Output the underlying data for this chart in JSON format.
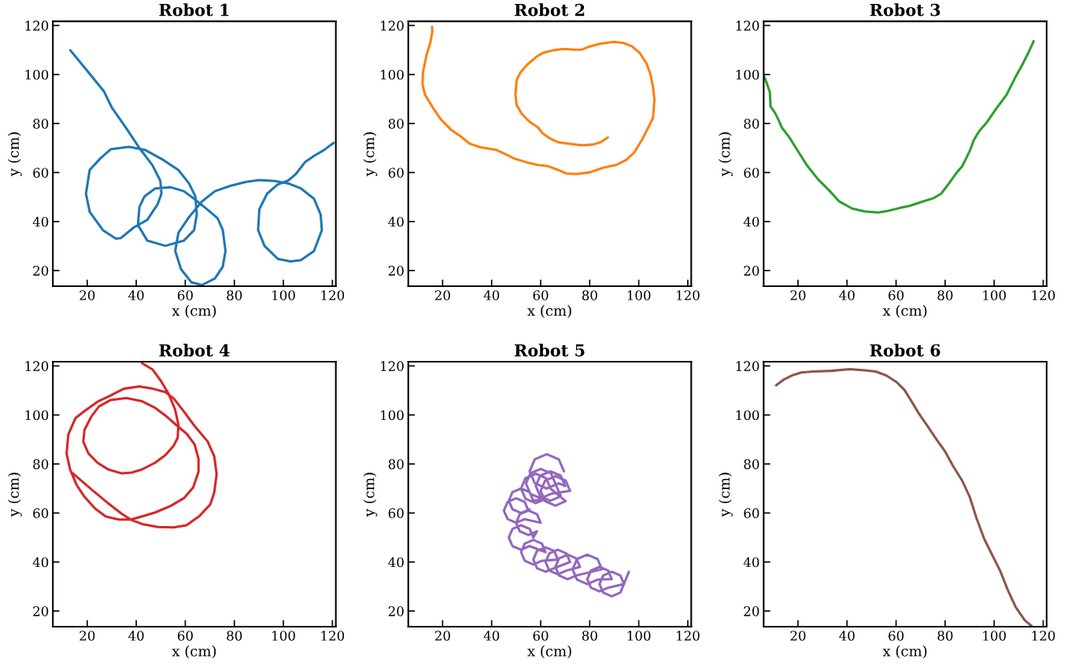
{
  "chart_data": [
    {
      "type": "line",
      "title": "Robot 1",
      "xlabel": "x (cm)",
      "ylabel": "y (cm)",
      "xlim": [
        6,
        121.4
      ],
      "ylim": [
        13.6,
        121.7
      ],
      "xticks": [
        20,
        40,
        60,
        80,
        100,
        120
      ],
      "yticks": [
        20,
        40,
        60,
        80,
        100,
        120
      ],
      "grid": false,
      "series": [
        {
          "color": "#1f77b4",
          "x": [
            13.1,
            20,
            26.9,
            30,
            36,
            41.3,
            46.6,
            49.8,
            50.3,
            48.7,
            44.5,
            39,
            33.8,
            31.7,
            26.4,
            21,
            19.5,
            21,
            25.3,
            29.6,
            37,
            43.4,
            50.9,
            57.2,
            61.5,
            64.1,
            64.7,
            63.6,
            59.4,
            51.9,
            44.5,
            40.7,
            41.3,
            43.4,
            47.7,
            54,
            59.4,
            63.6,
            68.9,
            73.2,
            75.3,
            76.4,
            75.3,
            72.1,
            66.8,
            62.5,
            58.3,
            55.9,
            57.2,
            61.5,
            66.8,
            72.1,
            78.5,
            84.9,
            90.2,
            96.6,
            101.9,
            107.2,
            112.5,
            115.2,
            115.7,
            112.5,
            107.2,
            103,
            97.7,
            92.3,
            89.7,
            90.2,
            93.4,
            97.7,
            101.9,
            105.1,
            108.8,
            112.5,
            116.3,
            120.5
          ],
          "values": [
            109.9,
            101.5,
            93,
            86.6,
            78,
            70,
            63,
            56.7,
            51.4,
            47,
            40.7,
            37.6,
            33.3,
            33,
            36.5,
            44,
            51.4,
            61,
            65.7,
            69.5,
            70.5,
            69.3,
            65.2,
            61,
            55.6,
            50.3,
            42.9,
            36.5,
            32.2,
            30.1,
            32.2,
            38.6,
            46,
            50.3,
            53.5,
            54,
            52.4,
            49.3,
            45,
            41.3,
            36.5,
            28,
            21.6,
            16.8,
            14.1,
            15.2,
            20.5,
            28,
            35.4,
            41.8,
            48.2,
            52.4,
            54.6,
            56.2,
            56.9,
            56.5,
            55.6,
            53.5,
            49.3,
            42.9,
            36.5,
            28,
            24.3,
            23.7,
            24.8,
            30.1,
            36.5,
            45,
            51.4,
            55.1,
            56.7,
            59.4,
            64.2,
            66.8,
            69,
            72.1
          ]
        }
      ]
    },
    {
      "type": "line",
      "title": "Robot 2",
      "xlabel": "x (cm)",
      "ylabel": "y (cm)",
      "xlim": [
        6,
        121.4
      ],
      "ylim": [
        13.6,
        121.7
      ],
      "xticks": [
        20,
        40,
        60,
        80,
        100,
        120
      ],
      "yticks": [
        20,
        40,
        60,
        80,
        100,
        120
      ],
      "grid": false,
      "series": [
        {
          "color": "#ff7f0e",
          "x": [
            15.7,
            15.8,
            15,
            13.4,
            12,
            11.8,
            12.8,
            16,
            19.3,
            23.5,
            27.3,
            31,
            35.3,
            41.7,
            46,
            49.2,
            54.5,
            58.8,
            63,
            67.3,
            70.5,
            74.8,
            80.1,
            85.5,
            90.8,
            95,
            98.3,
            101.5,
            103.7,
            105.8,
            106.4,
            105.8,
            104.7,
            103.1,
            100.4,
            97.2,
            94,
            89.8,
            84.4,
            80.1,
            77,
            73.7,
            69.5,
            65.2,
            60.9,
            58.2,
            54.5,
            51.8,
            50.2,
            49.7,
            50.2,
            52.4,
            55.6,
            58.8,
            60.9,
            64.1,
            67.3,
            72.7,
            77,
            81.2,
            84.4,
            87.4
          ],
          "values": [
            119.5,
            117.3,
            113,
            107.8,
            100.9,
            96,
            91.8,
            86.5,
            81.7,
            77.4,
            74.8,
            71.8,
            70.3,
            69.3,
            67.3,
            65.7,
            64.1,
            63.1,
            62.6,
            61,
            59.6,
            59.4,
            60.1,
            62,
            63.1,
            65.2,
            68.4,
            73.7,
            78,
            82.2,
            89.7,
            95,
            100.3,
            104.6,
            108.8,
            111.5,
            112.8,
            113.3,
            112.6,
            111.5,
            110.2,
            110.1,
            110.4,
            109.9,
            108.8,
            107.2,
            104,
            100.9,
            97.7,
            91.8,
            87.6,
            83.8,
            80.6,
            78.5,
            75.9,
            73.7,
            72.3,
            71.6,
            71.1,
            71.4,
            72.3,
            74.3
          ]
        }
      ]
    },
    {
      "type": "line",
      "title": "Robot 3",
      "xlabel": "x (cm)",
      "ylabel": "y (cm)",
      "xlim": [
        6,
        121.4
      ],
      "ylim": [
        13.6,
        121.7
      ],
      "xticks": [
        20,
        40,
        60,
        80,
        100,
        120
      ],
      "yticks": [
        20,
        40,
        60,
        80,
        100,
        120
      ],
      "grid": false,
      "series": [
        {
          "color": "#2ca02c",
          "x": [
            6.1,
            7.4,
            8.5,
            8.8,
            10.6,
            12.2,
            13.3,
            16.5,
            20.2,
            23.9,
            28.2,
            33,
            36.8,
            42.1,
            47.4,
            52.8,
            57,
            61.3,
            65.6,
            70.9,
            75.2,
            78.4,
            81.6,
            84.3,
            87,
            90.1,
            91.7,
            93.9,
            97.1,
            100.8,
            105.1,
            108.3,
            111.5,
            114.2,
            116.1
          ],
          "values": [
            99.3,
            96.1,
            92.9,
            87,
            84.4,
            81.2,
            78.5,
            74.3,
            68.4,
            62.6,
            57.2,
            52.4,
            48.2,
            45.3,
            44.1,
            43.7,
            44.4,
            45.5,
            46.4,
            48.2,
            49.5,
            51.4,
            55.6,
            59.4,
            62.6,
            68.9,
            73.2,
            76.9,
            80.6,
            86,
            91.8,
            98.2,
            104,
            109.4,
            113.6
          ]
        }
      ]
    },
    {
      "type": "line",
      "title": "Robot 4",
      "xlabel": "x (cm)",
      "ylabel": "y (cm)",
      "xlim": [
        6,
        121.4
      ],
      "ylim": [
        13.6,
        121.7
      ],
      "xticks": [
        20,
        40,
        60,
        80,
        100,
        120
      ],
      "yticks": [
        20,
        40,
        60,
        80,
        100,
        120
      ],
      "grid": false,
      "series": [
        {
          "color": "#d62728",
          "x": [
            42.4,
            46.7,
            49.9,
            53.1,
            55.8,
            57.2,
            56.9,
            55.3,
            52,
            47.7,
            42.4,
            38.1,
            33.9,
            28.5,
            24.2,
            20.5,
            18.4,
            18.9,
            21.6,
            24.8,
            29.6,
            36,
            42.4,
            47.7,
            52,
            56.3,
            60.6,
            63.8,
            65.4,
            65.4,
            63.2,
            59.5,
            54.1,
            47.7,
            42.4,
            38.1,
            32.8,
            27.5,
            23.2,
            18.9,
            15.7,
            13,
            11.6,
            12.3,
            15.2,
            18.9,
            24.2,
            29.6,
            34.9,
            41.3,
            46.7,
            52,
            55.3,
            59.5,
            63.8,
            69.1,
            71.8,
            72.8,
            71.8,
            70.2,
            65.8,
            60.5,
            55.2,
            48.8,
            42.4,
            38.1,
            33.9,
            28.5,
            22.1,
            14.1
          ],
          "values": [
            121.1,
            118.5,
            114.1,
            108.8,
            102.4,
            96,
            90.7,
            87.5,
            83.7,
            80.5,
            77.8,
            76.5,
            76.2,
            77.8,
            80.5,
            84.3,
            89.1,
            93.9,
            99.2,
            103.5,
            106.1,
            106.9,
            105.6,
            102.9,
            99.7,
            95.9,
            92.3,
            88,
            82.1,
            76.8,
            70.4,
            66.1,
            62.9,
            60.2,
            58.6,
            57.4,
            57.3,
            58.6,
            61.8,
            66.6,
            71.4,
            77.8,
            84.2,
            92,
            98.7,
            101.6,
            105.4,
            108,
            110.7,
            111.6,
            110.7,
            109.3,
            106.7,
            101.3,
            95.5,
            89.2,
            83.2,
            75.8,
            68.3,
            63.5,
            58.8,
            55,
            54.1,
            54.3,
            55.5,
            57.1,
            59.8,
            64,
            69.3,
            76.2
          ]
        }
      ]
    },
    {
      "type": "line",
      "title": "Robot 5",
      "xlabel": "x (cm)",
      "ylabel": "y (cm)",
      "xlim": [
        6,
        121.4
      ],
      "ylim": [
        13.6,
        121.7
      ],
      "xticks": [
        20,
        40,
        60,
        80,
        100,
        120
      ],
      "yticks": [
        20,
        40,
        60,
        80,
        100,
        120
      ],
      "grid": false,
      "series": [
        {
          "color": "#9467bd",
          "x": [
            69.5,
            67.4,
            62.5,
            57.6,
            55.5,
            57.6,
            62.5,
            67.4,
            70,
            68.2,
            64,
            59.8,
            58,
            59.8,
            64,
            68.2,
            66,
            64.2,
            60,
            55.8,
            54,
            55.8,
            60,
            64.2,
            72,
            70.2,
            66,
            61.8,
            60,
            61.8,
            66,
            70.2,
            64,
            62.2,
            58,
            53.8,
            52,
            53.8,
            58,
            62.2,
            57,
            55.5,
            52,
            48.5,
            47,
            48.5,
            52,
            55.5,
            55,
            53.5,
            50,
            46.5,
            45,
            46.5,
            50,
            53.5,
            60,
            58.5,
            55,
            51.5,
            50,
            51.5,
            55,
            58.5,
            57,
            55.5,
            52,
            48.5,
            47,
            48.5,
            52,
            55.5,
            62,
            60.5,
            57,
            53.5,
            52,
            53.5,
            57,
            60.5,
            67,
            65.5,
            62,
            58.5,
            57,
            58.5,
            62,
            65.5,
            72,
            70.5,
            67,
            63.5,
            62,
            63.5,
            67,
            70.5,
            76,
            74.5,
            71,
            67.5,
            66,
            67.5,
            71,
            74.5,
            85,
            83.2,
            79,
            74.8,
            73,
            74.8,
            79,
            83.2,
            89,
            87.5,
            84,
            80.5,
            79,
            80.5,
            84,
            87.5,
            94,
            92.5,
            89,
            85.5,
            84,
            85.5,
            89,
            92.5,
            96
          ],
          "values": [
            77,
            81.9,
            84,
            81.9,
            77,
            72.1,
            70,
            72.1,
            71,
            75.2,
            77,
            75.2,
            71,
            66.8,
            65,
            66.8,
            72,
            76.2,
            78,
            76.2,
            72,
            67.8,
            66,
            67.8,
            69,
            73.2,
            75,
            73.2,
            69,
            64.8,
            63,
            64.8,
            70,
            74.2,
            76,
            74.2,
            70,
            65.8,
            64,
            65.8,
            65,
            68.5,
            70,
            68.5,
            65,
            61.5,
            60,
            61.5,
            61,
            64.5,
            66,
            64.5,
            61,
            57.5,
            56,
            57.5,
            56,
            59.5,
            61,
            59.5,
            56,
            52.5,
            51,
            52.5,
            50,
            53.5,
            55,
            53.5,
            50,
            46.5,
            45,
            46.5,
            44,
            47.5,
            49,
            47.5,
            44,
            40.5,
            39,
            40.5,
            41,
            44.5,
            46,
            44.5,
            41,
            37.5,
            36,
            37.5,
            40,
            43.5,
            45,
            43.5,
            40,
            36.5,
            35,
            36.5,
            38,
            41.5,
            43,
            41.5,
            38,
            34.5,
            33,
            34.5,
            37,
            41.2,
            43,
            41.2,
            37,
            32.8,
            31,
            32.8,
            33,
            36.5,
            38,
            36.5,
            33,
            29.5,
            28,
            29.5,
            31,
            34.5,
            36,
            34.5,
            31,
            27.5,
            26,
            27.5,
            36
          ]
        }
      ]
    },
    {
      "type": "line",
      "title": "Robot 6",
      "xlabel": "x (cm)",
      "ylabel": "y (cm)",
      "xlim": [
        6,
        121.4
      ],
      "ylim": [
        13.6,
        121.7
      ],
      "xticks": [
        20,
        40,
        60,
        80,
        100,
        120
      ],
      "yticks": [
        20,
        40,
        60,
        80,
        100,
        120
      ],
      "grid": false,
      "series": [
        {
          "color": "#8c564b",
          "x": [
            11.1,
            14.3,
            17.5,
            21.3,
            26.1,
            33.6,
            41,
            47.4,
            51.7,
            56,
            60.2,
            63.4,
            66.1,
            69.3,
            73,
            76.2,
            80,
            83.2,
            86.9,
            90.1,
            92.8,
            96,
            99.2,
            102.4,
            105.6,
            108.8,
            112.5,
            115.4
          ],
          "values": [
            112.1,
            114.5,
            116.1,
            117.3,
            117.7,
            118,
            118.7,
            118.2,
            117.7,
            116.1,
            113.4,
            110.2,
            105.9,
            100.6,
            95.2,
            90.4,
            85.1,
            79.2,
            73.3,
            66.4,
            57.9,
            49.3,
            42.9,
            36.5,
            28.5,
            21.6,
            16.2,
            13.8
          ]
        }
      ]
    }
  ]
}
